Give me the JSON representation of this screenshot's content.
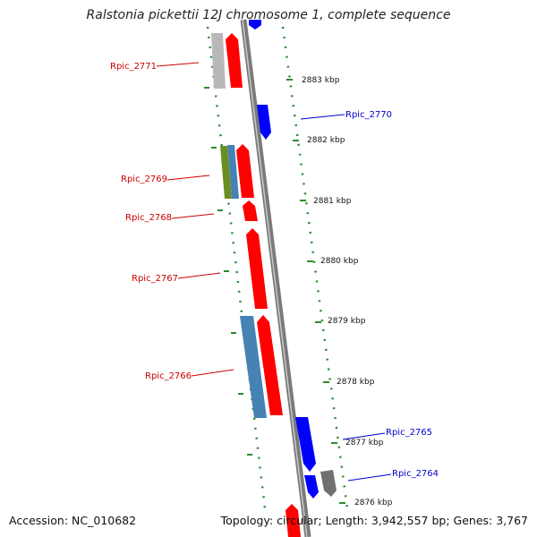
{
  "title": "Ralstonia pickettii 12J chromosome 1, complete sequence",
  "footer": {
    "accession": "Accession: NC_010682",
    "summary": "Topology: circular; Length: 3,942,557 bp; Genes: 3,767"
  },
  "colors": {
    "backbone": "#8a8a8a",
    "dots": "#2e8b2e",
    "forward": "#ff0000",
    "reverse": "#0000ff",
    "gray": "#b0b0b0",
    "steelblue": "#4682b4",
    "olive": "#6b8e23",
    "darkgray": "#707070",
    "label_red": "#cc0000",
    "label_blue": "#0000cc"
  },
  "scale_ticks": [
    "2883 kbp",
    "2882 kbp",
    "2881 kbp",
    "2880 kbp",
    "2879 kbp",
    "2878 kbp",
    "2877 kbp",
    "2876 kbp"
  ],
  "gene_labels": [
    {
      "text": "Rpic_2771",
      "side": "left",
      "color": "red"
    },
    {
      "text": "Rpic_2770",
      "side": "right",
      "color": "blue"
    },
    {
      "text": "Rpic_2769",
      "side": "left",
      "color": "red"
    },
    {
      "text": "Rpic_2768",
      "side": "left",
      "color": "red"
    },
    {
      "text": "Rpic_2767",
      "side": "left",
      "color": "red"
    },
    {
      "text": "Rpic_2766",
      "side": "left",
      "color": "red"
    },
    {
      "text": "Rpic_2765",
      "side": "right",
      "color": "blue"
    },
    {
      "text": "Rpic_2764",
      "side": "right",
      "color": "blue"
    }
  ]
}
